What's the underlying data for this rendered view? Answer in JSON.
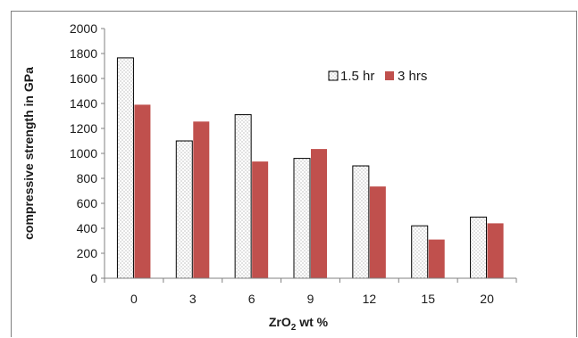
{
  "chart_data": {
    "type": "bar",
    "categories": [
      "0",
      "3",
      "6",
      "9",
      "12",
      "15",
      "20"
    ],
    "series": [
      {
        "name": "1.5 hr",
        "values": [
          1765,
          1100,
          1310,
          960,
          900,
          420,
          490
        ],
        "color": "#ffffff",
        "pattern": "dotted",
        "stroke": "#000000"
      },
      {
        "name": "3 hrs",
        "values": [
          1390,
          1255,
          935,
          1035,
          735,
          310,
          440
        ],
        "color": "#c0504d",
        "stroke": "#c0504d"
      }
    ],
    "title": "",
    "xlabel": {
      "main": "ZrO",
      "sub": "2",
      "rest": " wt %"
    },
    "ylabel": "compressive strength in GPa",
    "ylim": [
      0,
      2000
    ],
    "yticks": [
      0,
      200,
      400,
      600,
      800,
      1000,
      1200,
      1400,
      1600,
      1800,
      2000
    ],
    "grid": false,
    "legend_position": "top-right"
  }
}
